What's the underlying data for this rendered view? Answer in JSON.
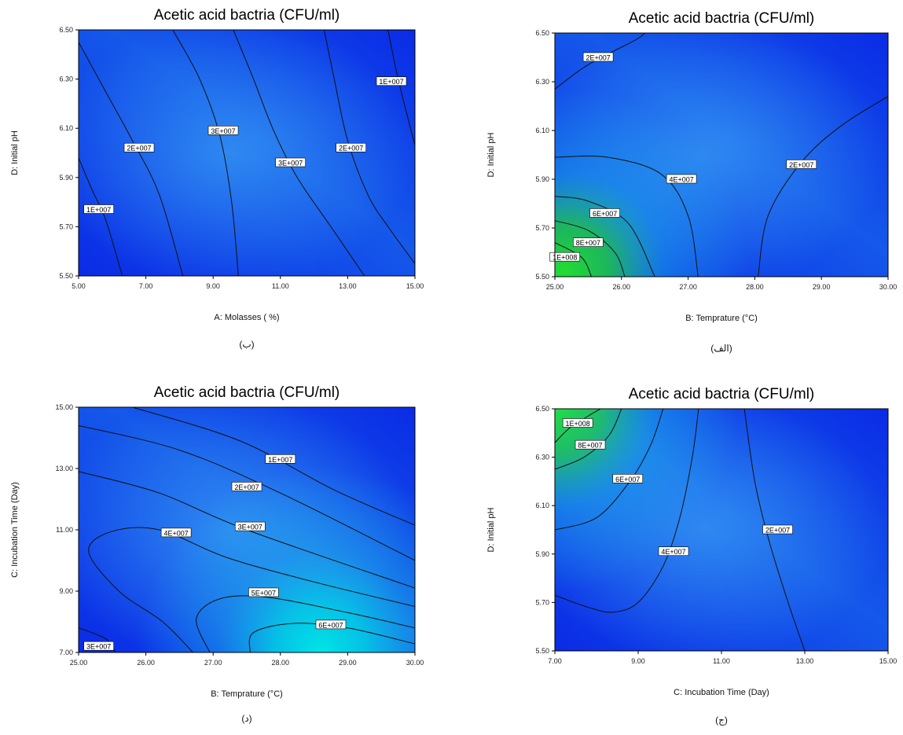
{
  "chart_data": [
    {
      "id": "p1",
      "type": "contour",
      "title": "Acetic acid bactria (CFU/ml)",
      "xlabel": "A: Molasses ( %)",
      "ylabel": "D: Initial pH",
      "caption": "(ب)",
      "xlim": [
        5.0,
        15.0
      ],
      "ylim": [
        5.5,
        6.5
      ],
      "xticks": [
        "5.00",
        "7.00",
        "9.00",
        "11.00",
        "13.00",
        "15.00"
      ],
      "yticks": [
        "5.50",
        "5.70",
        "5.90",
        "6.10",
        "6.30",
        "6.50"
      ],
      "color_scale": [
        "#0a2be6",
        "#1f7af0"
      ],
      "contours": [
        {
          "label": "1E+007",
          "label_at": [
            5.6,
            5.77
          ],
          "points": [
            [
              5.0,
              5.98
            ],
            [
              5.4,
              5.85
            ],
            [
              5.8,
              5.73
            ],
            [
              6.3,
              5.5
            ]
          ]
        },
        {
          "label": "2E+007",
          "label_at": [
            6.8,
            6.02
          ],
          "points": [
            [
              5.0,
              6.45
            ],
            [
              5.8,
              6.25
            ],
            [
              6.6,
              6.05
            ],
            [
              7.4,
              5.83
            ],
            [
              8.1,
              5.5
            ]
          ]
        },
        {
          "label": "3E+007",
          "label_at": [
            9.3,
            6.09
          ],
          "points": [
            [
              7.8,
              6.5
            ],
            [
              8.6,
              6.3
            ],
            [
              9.2,
              6.07
            ],
            [
              9.55,
              5.8
            ],
            [
              9.75,
              5.5
            ]
          ]
        },
        {
          "label": "3E+007",
          "label_at": [
            11.3,
            5.96
          ],
          "points": [
            [
              9.6,
              6.5
            ],
            [
              10.2,
              6.3
            ],
            [
              10.8,
              6.09
            ],
            [
              11.5,
              5.9
            ],
            [
              12.5,
              5.7
            ],
            [
              13.5,
              5.5
            ]
          ]
        },
        {
          "label": "2E+007",
          "label_at": [
            13.1,
            6.02
          ],
          "points": [
            [
              12.3,
              6.5
            ],
            [
              12.6,
              6.3
            ],
            [
              13.0,
              6.05
            ],
            [
              13.6,
              5.83
            ],
            [
              14.2,
              5.7
            ],
            [
              15.0,
              5.55
            ]
          ]
        },
        {
          "label": "1E+007",
          "label_at": [
            14.3,
            6.29
          ],
          "points": [
            [
              14.2,
              6.5
            ],
            [
              14.5,
              6.3
            ],
            [
              15.0,
              6.03
            ]
          ]
        }
      ]
    },
    {
      "id": "p2",
      "type": "contour",
      "title": "Acetic acid bactria (CFU/ml)",
      "xlabel": "B: Temprature (°C)",
      "ylabel": "D: Initial pH",
      "caption": "(الف)",
      "xlim": [
        25.0,
        30.0
      ],
      "ylim": [
        5.5,
        6.5
      ],
      "xticks": [
        "25.00",
        "26.00",
        "27.00",
        "28.00",
        "29.00",
        "30.00"
      ],
      "yticks": [
        "5.50",
        "5.70",
        "5.90",
        "6.10",
        "6.30",
        "6.50"
      ],
      "color_scale": [
        "#0a2be6",
        "#22dd33"
      ],
      "hotspot": [
        25.15,
        5.52
      ],
      "contours": [
        {
          "label": "2E+007",
          "label_at": [
            25.65,
            6.4
          ],
          "points": [
            [
              25.0,
              6.27
            ],
            [
              25.5,
              6.37
            ],
            [
              26.2,
              6.47
            ],
            [
              26.35,
              6.5
            ]
          ]
        },
        {
          "label": "4E+007",
          "label_at": [
            26.9,
            5.9
          ],
          "points": [
            [
              25.0,
              5.99
            ],
            [
              25.8,
              5.99
            ],
            [
              26.6,
              5.92
            ],
            [
              27.0,
              5.75
            ],
            [
              27.15,
              5.5
            ]
          ]
        },
        {
          "label": "6E+007",
          "label_at": [
            25.75,
            5.76
          ],
          "points": [
            [
              25.0,
              5.83
            ],
            [
              25.5,
              5.81
            ],
            [
              26.1,
              5.72
            ],
            [
              26.5,
              5.5
            ]
          ]
        },
        {
          "label": "8E+007",
          "label_at": [
            25.5,
            5.64
          ],
          "points": [
            [
              25.0,
              5.73
            ],
            [
              25.5,
              5.69
            ],
            [
              25.9,
              5.6
            ],
            [
              26.05,
              5.5
            ]
          ]
        },
        {
          "label": "1E+008",
          "label_at": [
            25.15,
            5.58
          ],
          "points": [
            [
              25.0,
              5.64
            ],
            [
              25.4,
              5.58
            ],
            [
              25.55,
              5.5
            ]
          ]
        },
        {
          "label": "2E+007",
          "label_at": [
            28.7,
            5.96
          ],
          "points": [
            [
              28.05,
              5.5
            ],
            [
              28.2,
              5.75
            ],
            [
              28.7,
              5.97
            ],
            [
              29.3,
              6.12
            ],
            [
              30.0,
              6.24
            ]
          ]
        }
      ]
    },
    {
      "id": "p3",
      "type": "contour",
      "title": "Acetic acid bactria (CFU/ml)",
      "xlabel": "B: Temprature (°C)",
      "ylabel": "C: Incubation Time (Day)",
      "caption": "(د)",
      "xlim": [
        25.0,
        30.0
      ],
      "ylim": [
        7.0,
        15.0
      ],
      "xticks": [
        "25.00",
        "26.00",
        "27.00",
        "28.00",
        "29.00",
        "30.00"
      ],
      "yticks": [
        "7.00",
        "9.00",
        "11.00",
        "13.00",
        "15.00"
      ],
      "color_scale": [
        "#0a2be6",
        "#00e5e5"
      ],
      "hotspot": [
        28.6,
        7.0
      ],
      "contours": [
        {
          "label": "1E+007",
          "label_at": [
            28.0,
            13.3
          ],
          "points": [
            [
              25.8,
              15.0
            ],
            [
              27.4,
              13.9
            ],
            [
              28.8,
              12.3
            ],
            [
              30.0,
              11.15
            ]
          ]
        },
        {
          "label": "2E+007",
          "label_at": [
            27.5,
            12.4
          ],
          "points": [
            [
              25.0,
              14.4
            ],
            [
              26.5,
              13.6
            ],
            [
              28.0,
              12.2
            ],
            [
              30.0,
              10.0
            ]
          ]
        },
        {
          "label": "3E+007",
          "label_at": [
            27.55,
            11.1
          ],
          "points": [
            [
              25.0,
              12.9
            ],
            [
              26.2,
              12.2
            ],
            [
              27.5,
              11.0
            ],
            [
              30.0,
              9.1
            ]
          ]
        },
        {
          "label": "4E+007",
          "label_at": [
            26.45,
            10.9
          ],
          "points": [
            [
              30.0,
              8.5
            ],
            [
              28.5,
              9.3
            ],
            [
              27.2,
              10.1
            ],
            [
              26.2,
              11.0
            ],
            [
              25.5,
              10.95
            ],
            [
              25.15,
              10.3
            ],
            [
              25.6,
              9.0
            ],
            [
              26.25,
              8.0
            ],
            [
              26.7,
              7.0
            ]
          ]
        },
        {
          "label": "5E+007",
          "label_at": [
            27.75,
            8.95
          ],
          "points": [
            [
              30.0,
              7.8
            ],
            [
              29.0,
              8.3
            ],
            [
              27.8,
              8.8
            ],
            [
              27.1,
              8.75
            ],
            [
              26.75,
              8.1
            ],
            [
              26.95,
              7.0
            ]
          ]
        },
        {
          "label": "6E+007",
          "label_at": [
            28.75,
            7.9
          ],
          "points": [
            [
              30.0,
              7.28
            ],
            [
              29.0,
              7.8
            ],
            [
              28.2,
              7.95
            ],
            [
              27.6,
              7.65
            ],
            [
              27.55,
              7.0
            ]
          ]
        },
        {
          "label": "3E+007",
          "label_at": [
            25.3,
            7.2
          ],
          "points": [
            [
              25.0,
              7.8
            ],
            [
              25.4,
              7.45
            ],
            [
              25.55,
              7.0
            ]
          ]
        }
      ]
    },
    {
      "id": "p4",
      "type": "contour",
      "title": "Acetic acid bactria (CFU/ml)",
      "xlabel": "C: Incubation Time (Day)",
      "ylabel": "D: Initial pH",
      "caption": "(ج)",
      "xlim": [
        7.0,
        15.0
      ],
      "ylim": [
        5.5,
        6.5
      ],
      "xticks": [
        "7.00",
        "9.00",
        "11.00",
        "13.00",
        "15.00"
      ],
      "yticks": [
        "5.50",
        "5.70",
        "5.90",
        "6.10",
        "6.30",
        "6.50"
      ],
      "color_scale": [
        "#0a2be6",
        "#22dd44"
      ],
      "hotspot": [
        7.0,
        6.5
      ],
      "contours": [
        {
          "label": "1E+008",
          "label_at": [
            7.55,
            6.44
          ],
          "points": [
            [
              7.0,
              6.36
            ],
            [
              7.35,
              6.42
            ],
            [
              7.8,
              6.47
            ],
            [
              8.1,
              6.5
            ]
          ]
        },
        {
          "label": "8E+007",
          "label_at": [
            7.85,
            6.35
          ],
          "points": [
            [
              7.0,
              6.25
            ],
            [
              7.7,
              6.3
            ],
            [
              8.3,
              6.39
            ],
            [
              8.6,
              6.5
            ]
          ]
        },
        {
          "label": "6E+007",
          "label_at": [
            8.75,
            6.21
          ],
          "points": [
            [
              7.0,
              6.0
            ],
            [
              8.0,
              6.05
            ],
            [
              8.8,
              6.2
            ],
            [
              9.3,
              6.35
            ],
            [
              9.6,
              6.5
            ]
          ]
        },
        {
          "label": "4E+007",
          "label_at": [
            9.85,
            5.91
          ],
          "points": [
            [
              7.0,
              5.73
            ],
            [
              7.8,
              5.68
            ],
            [
              8.4,
              5.66
            ],
            [
              9.0,
              5.7
            ],
            [
              9.6,
              5.85
            ],
            [
              10.0,
              6.05
            ],
            [
              10.3,
              6.3
            ],
            [
              10.45,
              6.5
            ]
          ]
        },
        {
          "label": "2E+007",
          "label_at": [
            12.35,
            6.0
          ],
          "points": [
            [
              11.55,
              6.5
            ],
            [
              11.8,
              6.2
            ],
            [
              12.15,
              5.95
            ],
            [
              12.6,
              5.7
            ],
            [
              13.0,
              5.5
            ]
          ]
        }
      ]
    }
  ]
}
